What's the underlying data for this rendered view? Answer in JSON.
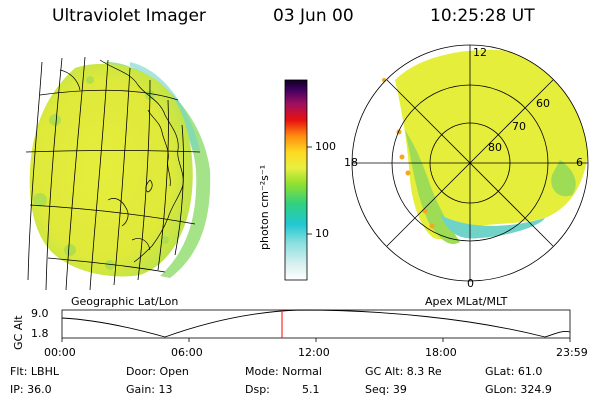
{
  "header": {
    "title": "Ultraviolet Imager",
    "date": "03 Jun 00",
    "time": "10:25:28 UT"
  },
  "colorbar": {
    "unit_label": "photon cm⁻²s⁻¹",
    "ticks": [
      "100",
      "10"
    ]
  },
  "polar": {
    "mlt_labels": [
      "12",
      "18",
      "6",
      "0"
    ],
    "lat_labels": [
      "60",
      "70",
      "80"
    ]
  },
  "panels": {
    "left_caption": "Geographic Lat/Lon",
    "right_caption": "Apex MLat/MLT"
  },
  "altitude_plot": {
    "ylabel": "GC Alt",
    "yticks": [
      "9.0",
      "1.8"
    ],
    "xticks": [
      "00:00",
      "06:00",
      "12:00",
      "18:00",
      "23:59"
    ],
    "marker_time": "10:25"
  },
  "info": {
    "flt": "Flt: LBHL",
    "ip": "IP: 36.0",
    "door": "Door: Open",
    "gain": "Gain: 13",
    "mode": "Mode: Normal",
    "dsp_label": "Dsp:",
    "dsp_value": "5.1",
    "gcalt": "GC Alt: 8.3 Re",
    "seq": "Seq: 39",
    "glat": "GLat:  61.0",
    "glon": "GLon: 324.9"
  },
  "colors": {
    "aurora_yellow": "#e6ee3c",
    "aurora_green": "#9fdc55",
    "aurora_cyan": "#6fd3c8",
    "marker_red": "#ff0000"
  }
}
